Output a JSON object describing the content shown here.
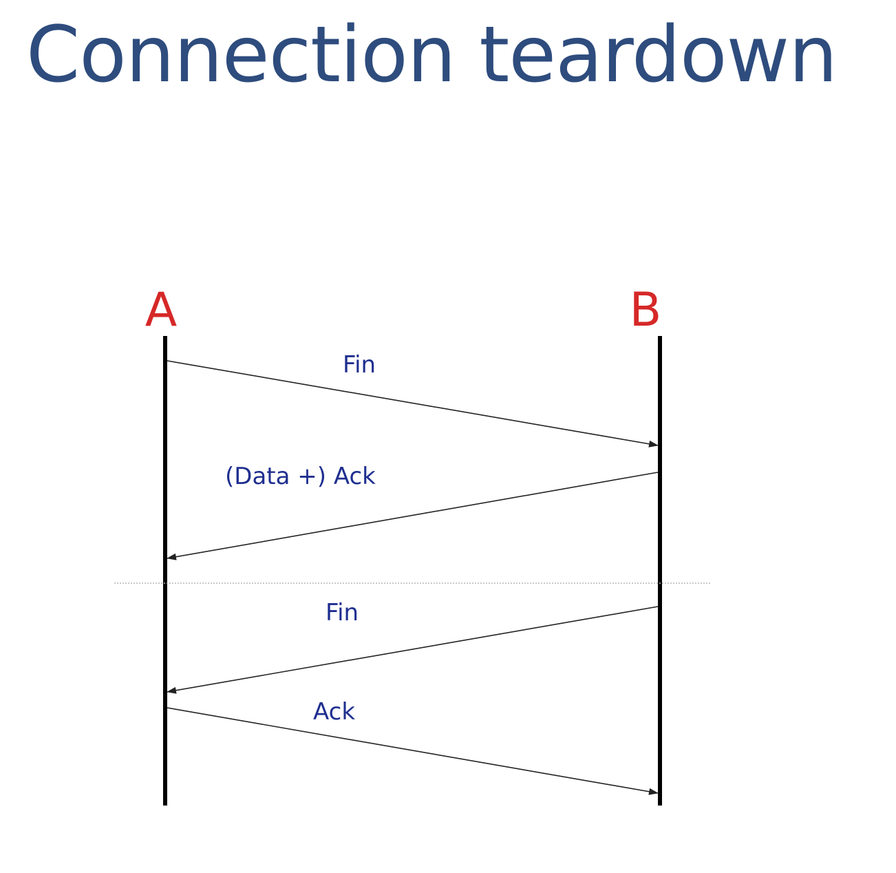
{
  "title": "Connection teardown",
  "colors": {
    "title": "#2e4c7d",
    "host": "#d62828",
    "message": "#1f2f8f",
    "timeline": "#000000",
    "arrow": "#222222",
    "separator": "#b5b5b5"
  },
  "hosts": [
    {
      "id": "A",
      "label": "A"
    },
    {
      "id": "B",
      "label": "B"
    }
  ],
  "messages": [
    {
      "from": "A",
      "to": "B",
      "label": "Fin"
    },
    {
      "from": "B",
      "to": "A",
      "label": "(Data +) Ack"
    },
    {
      "from": "B",
      "to": "A",
      "label": "Fin"
    },
    {
      "from": "A",
      "to": "B",
      "label": "Ack"
    }
  ]
}
